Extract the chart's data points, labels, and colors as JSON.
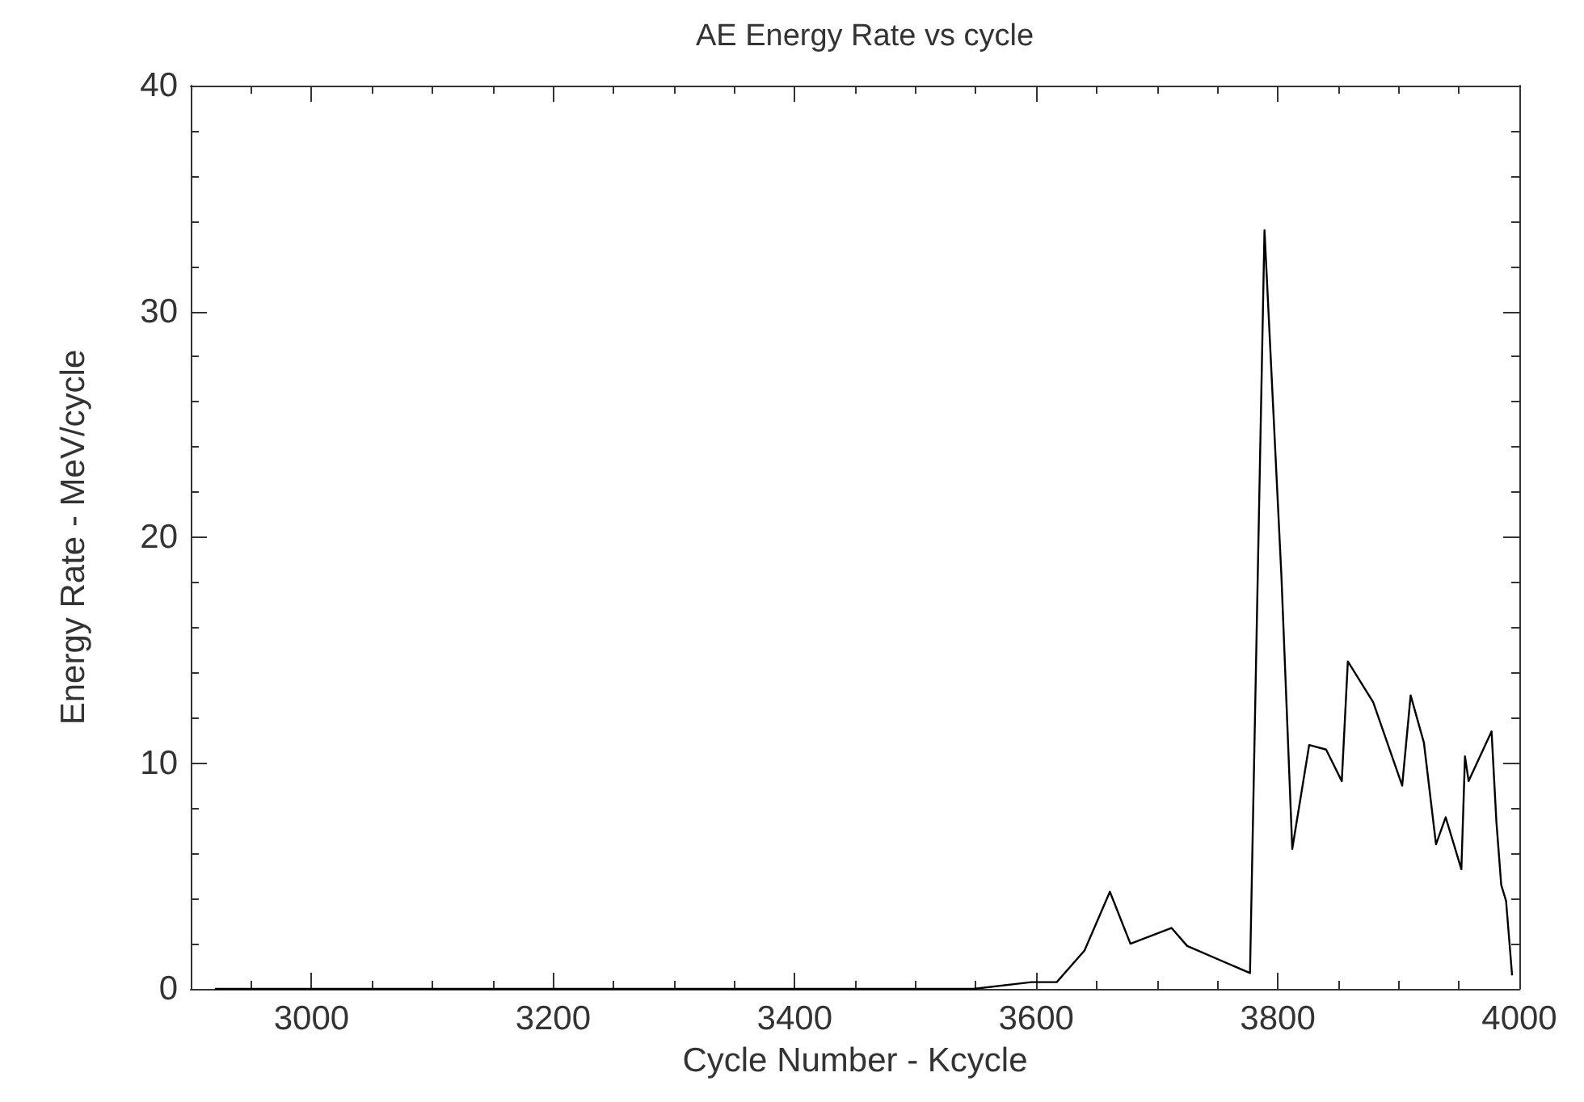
{
  "chart_data": {
    "type": "line",
    "title": "AE Energy Rate vs cycle",
    "xlabel": "Cycle Number - Kcycle",
    "ylabel": "Energy Rate - MeV/cycle",
    "series": [
      {
        "color": "#000000",
        "x": [
          2920,
          3548,
          3596,
          3617,
          3640,
          3661,
          3678,
          3712,
          3725,
          3777,
          3789,
          3803,
          3812,
          3826,
          3840,
          3853,
          3858,
          3879,
          3903,
          3910,
          3921,
          3931,
          3939,
          3952,
          3955,
          3958,
          3977,
          3981,
          3985,
          3989,
          3994
        ],
        "values": [
          0,
          0,
          0.3,
          0.3,
          1.7,
          4.3,
          2.0,
          2.7,
          1.9,
          0.7,
          33.6,
          18.3,
          6.2,
          10.8,
          10.6,
          9.2,
          14.5,
          12.7,
          9.0,
          13.0,
          10.9,
          6.4,
          7.6,
          5.3,
          10.3,
          9.2,
          11.4,
          7.4,
          4.6,
          3.9,
          0.6
        ]
      }
    ],
    "xlim": [
      2900,
      4000
    ],
    "xticks": [
      3000,
      3200,
      3400,
      3600,
      3800,
      4000
    ],
    "ylim": [
      0,
      40
    ],
    "yticks": [
      0,
      10,
      20,
      30,
      40
    ],
    "grid": false,
    "marker": "none",
    "line_style": "solid"
  }
}
